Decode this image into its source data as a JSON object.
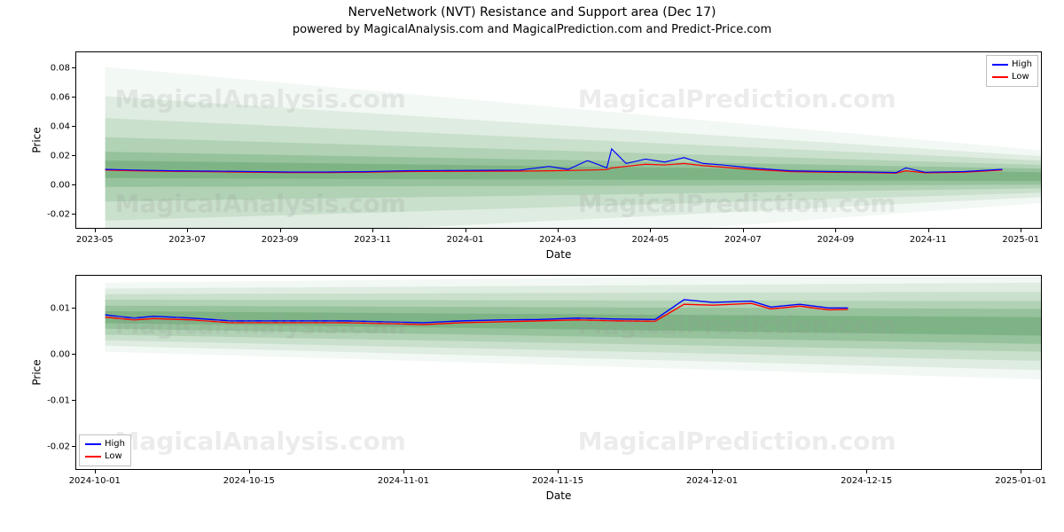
{
  "title": "NerveNetwork (NVT) Resistance and Support area (Dec 17)",
  "subtitle": "powered by MagicalAnalysis.com and MagicalPrediction.com and Predict-Price.com",
  "watermarks": [
    "MagicalAnalysis.com",
    "MagicalPrediction.com"
  ],
  "legend": {
    "items": [
      {
        "label": "High",
        "color": "#0000ff"
      },
      {
        "label": "Low",
        "color": "#ff0000"
      }
    ]
  },
  "fan_colors": [
    "rgba(90,160,100,0.08)",
    "rgba(90,160,100,0.12)",
    "rgba(90,160,100,0.16)",
    "rgba(90,160,100,0.22)",
    "rgba(90,160,100,0.30)",
    "rgba(90,160,100,0.40)"
  ],
  "top": {
    "type": "line-with-fan",
    "xlabel": "Date",
    "ylabel": "Price",
    "ylim": [
      -0.03,
      0.09
    ],
    "yticks": [
      -0.02,
      0.0,
      0.02,
      0.04,
      0.06,
      0.08
    ],
    "xticks": [
      "2023-05",
      "2023-07",
      "2023-09",
      "2023-11",
      "2024-01",
      "2024-03",
      "2024-05",
      "2024-07",
      "2024-09",
      "2024-11",
      "2025-01"
    ],
    "legend_pos": "top-right",
    "line_width": 1.2,
    "fan": {
      "x0_fr": 0.03,
      "start_center": 0.01,
      "start_half_widths": [
        0.07,
        0.05,
        0.035,
        0.022,
        0.012,
        0.006
      ],
      "end_center": 0.005,
      "end_half_widths": [
        0.018,
        0.014,
        0.011,
        0.008,
        0.0055,
        0.003
      ]
    },
    "series": {
      "x_fr": [
        0.03,
        0.06,
        0.1,
        0.14,
        0.18,
        0.22,
        0.26,
        0.3,
        0.34,
        0.38,
        0.42,
        0.46,
        0.49,
        0.51,
        0.53,
        0.55,
        0.555,
        0.57,
        0.59,
        0.61,
        0.63,
        0.65,
        0.67,
        0.7,
        0.74,
        0.78,
        0.82,
        0.85,
        0.86,
        0.88,
        0.92,
        0.96
      ],
      "high": [
        0.01,
        0.0095,
        0.009,
        0.0088,
        0.0085,
        0.0082,
        0.0082,
        0.0084,
        0.009,
        0.0092,
        0.0093,
        0.0095,
        0.012,
        0.01,
        0.016,
        0.011,
        0.024,
        0.014,
        0.017,
        0.015,
        0.018,
        0.014,
        0.013,
        0.011,
        0.009,
        0.0085,
        0.0082,
        0.0078,
        0.011,
        0.008,
        0.0085,
        0.01
      ],
      "low": [
        0.0095,
        0.009,
        0.0086,
        0.0084,
        0.008,
        0.0078,
        0.0078,
        0.008,
        0.0085,
        0.0086,
        0.0087,
        0.0088,
        0.009,
        0.0092,
        0.0095,
        0.0098,
        0.011,
        0.012,
        0.0135,
        0.013,
        0.014,
        0.0125,
        0.0115,
        0.01,
        0.0085,
        0.008,
        0.0078,
        0.0074,
        0.009,
        0.0076,
        0.008,
        0.0095
      ]
    }
  },
  "bottom": {
    "type": "line-with-fan",
    "xlabel": "Date",
    "ylabel": "Price",
    "ylim": [
      -0.025,
      0.017
    ],
    "yticks": [
      -0.02,
      -0.01,
      0.0,
      0.01
    ],
    "xticks": [
      "2024-10-01",
      "2024-10-15",
      "2024-11-01",
      "2024-11-15",
      "2024-12-01",
      "2024-12-15",
      "2025-01-01"
    ],
    "legend_pos": "bottom-left",
    "line_width": 1.4,
    "fan": {
      "x0_fr": 0.03,
      "start_center": 0.008,
      "start_half_widths": [
        0.0075,
        0.0062,
        0.005,
        0.0038,
        0.0025,
        0.0013
      ],
      "end_center": 0.006,
      "end_half_widths": [
        0.0115,
        0.0095,
        0.0075,
        0.0055,
        0.0038,
        0.002
      ]
    },
    "series": {
      "x_fr": [
        0.03,
        0.06,
        0.08,
        0.12,
        0.16,
        0.2,
        0.24,
        0.28,
        0.32,
        0.36,
        0.4,
        0.44,
        0.48,
        0.52,
        0.56,
        0.6,
        0.63,
        0.66,
        0.7,
        0.72,
        0.75,
        0.78,
        0.8
      ],
      "high": [
        0.0085,
        0.0078,
        0.0082,
        0.0078,
        0.0072,
        0.0072,
        0.0072,
        0.0072,
        0.007,
        0.0068,
        0.0072,
        0.0074,
        0.0075,
        0.0078,
        0.0076,
        0.0075,
        0.0118,
        0.0112,
        0.0115,
        0.0102,
        0.0108,
        0.01,
        0.01
      ],
      "low": [
        0.008,
        0.0074,
        0.0077,
        0.0074,
        0.0068,
        0.0068,
        0.0068,
        0.0068,
        0.0066,
        0.0064,
        0.0068,
        0.007,
        0.0072,
        0.0074,
        0.0072,
        0.0071,
        0.0108,
        0.0106,
        0.011,
        0.0098,
        0.0104,
        0.0096,
        0.0097
      ]
    }
  },
  "colors": {
    "high": "#0000ff",
    "low": "#ff0000",
    "axis": "#000000",
    "bg": "#ffffff"
  },
  "font": {
    "title_size": 14,
    "subtitle_size": 13,
    "label_size": 12,
    "tick_size": 10
  }
}
